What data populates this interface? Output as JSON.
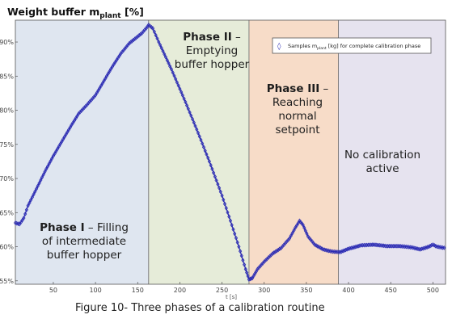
{
  "chart_data": {
    "type": "scatter",
    "ylabel": {
      "prefix": "Weight buffer m",
      "subscript": "plant",
      "suffix": " [%]"
    },
    "xlabel": "t [s]",
    "xlim": [
      5,
      515
    ],
    "ylim": [
      54.5,
      93.2
    ],
    "xticks": [
      50,
      100,
      150,
      200,
      250,
      300,
      350,
      400,
      450,
      500
    ],
    "yticks": [
      55,
      60,
      65,
      70,
      75,
      80,
      85,
      90
    ],
    "ytick_suffix": "%",
    "legend": {
      "symbol": "◊",
      "prefix": "Samples m",
      "subscript": "plant",
      "suffix": " [kg] for complete calibration phase",
      "position": "top-right"
    },
    "phases": [
      {
        "x_start": 5,
        "x_end": 163,
        "color": "#dfe6f0",
        "lines": [
          {
            "bold": "Phase I",
            "rest": " – Filling"
          },
          {
            "bold": "",
            "rest": "of intermediate"
          },
          {
            "bold": "",
            "rest": "buffer hopper"
          }
        ]
      },
      {
        "x_start": 163,
        "x_end": 282,
        "color": "#e6ecd9",
        "lines": [
          {
            "bold": "Phase II",
            "rest": " –"
          },
          {
            "bold": "",
            "rest": "Emptying"
          },
          {
            "bold": "",
            "rest": "buffer hopper"
          }
        ]
      },
      {
        "x_start": 282,
        "x_end": 388,
        "color": "#f7dcc8",
        "lines": [
          {
            "bold": "Phase III",
            "rest": " –"
          },
          {
            "bold": "",
            "rest": "Reaching"
          },
          {
            "bold": "",
            "rest": "normal"
          },
          {
            "bold": "",
            "rest": "setpoint"
          }
        ]
      },
      {
        "x_start": 388,
        "x_end": 515,
        "color": "#e6e3ef",
        "lines": [
          {
            "bold": "",
            "rest": "No calibration"
          },
          {
            "bold": "",
            "rest": "active"
          }
        ]
      }
    ],
    "series": [
      {
        "color": "#2b2bb3",
        "points": [
          [
            5,
            63.5
          ],
          [
            10,
            63.3
          ],
          [
            15,
            64.2
          ],
          [
            20,
            66.0
          ],
          [
            30,
            68.5
          ],
          [
            40,
            71.0
          ],
          [
            50,
            73.3
          ],
          [
            60,
            75.4
          ],
          [
            70,
            77.5
          ],
          [
            80,
            79.5
          ],
          [
            90,
            80.8
          ],
          [
            100,
            82.2
          ],
          [
            110,
            84.3
          ],
          [
            120,
            86.4
          ],
          [
            130,
            88.3
          ],
          [
            140,
            89.8
          ],
          [
            150,
            90.8
          ],
          [
            155,
            91.3
          ],
          [
            160,
            92.0
          ],
          [
            163,
            92.5
          ],
          [
            168,
            92.0
          ],
          [
            175,
            90.0
          ],
          [
            190,
            86.0
          ],
          [
            205,
            81.7
          ],
          [
            220,
            77.2
          ],
          [
            235,
            72.5
          ],
          [
            250,
            67.5
          ],
          [
            260,
            63.8
          ],
          [
            270,
            60.0
          ],
          [
            278,
            56.7
          ],
          [
            282,
            55.2
          ],
          [
            286,
            55.4
          ],
          [
            292,
            56.7
          ],
          [
            300,
            57.8
          ],
          [
            310,
            59.0
          ],
          [
            320,
            59.8
          ],
          [
            330,
            61.2
          ],
          [
            337,
            62.8
          ],
          [
            342,
            63.8
          ],
          [
            346,
            63.2
          ],
          [
            352,
            61.5
          ],
          [
            360,
            60.3
          ],
          [
            370,
            59.6
          ],
          [
            380,
            59.3
          ],
          [
            390,
            59.2
          ],
          [
            400,
            59.7
          ],
          [
            415,
            60.2
          ],
          [
            430,
            60.3
          ],
          [
            445,
            60.1
          ],
          [
            460,
            60.1
          ],
          [
            475,
            59.9
          ],
          [
            485,
            59.6
          ],
          [
            495,
            60.0
          ],
          [
            500,
            60.3
          ],
          [
            505,
            60.0
          ],
          [
            515,
            59.8
          ]
        ]
      }
    ]
  },
  "caption": "Figure 10- Three phases of a calibration routine"
}
